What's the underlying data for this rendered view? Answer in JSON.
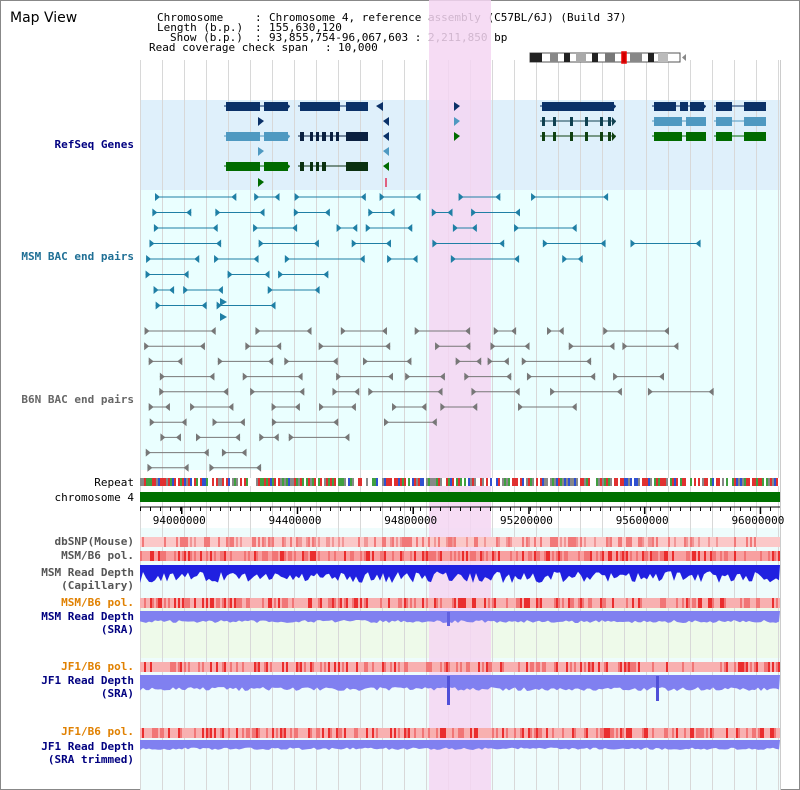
{
  "view_title": "Map View",
  "info": {
    "chromosome_key": "Chromosome",
    "chromosome_val": "Chromosome 4, reference assembly (C57BL/6J) (Build 37)",
    "length_key": "Length (b.p.)",
    "length_val": "155,630,120",
    "show_key": "Show (b.p.)",
    "show_val": "93,855,754-96,067,603 : 2,211,850 bp",
    "coverage_key": "Read coverage check span",
    "coverage_val": "10,000"
  },
  "tracks": {
    "refseq": "RefSeq Genes",
    "msm_bac": "MSM BAC end pairs",
    "b6n_bac": "B6N BAC end pairs",
    "repeat": "Repeat",
    "chromosome": "chromosome 4",
    "dbsnp": "dbSNP(Mouse)",
    "msm_b6_pol_1": "MSM/B6 pol.",
    "msm_depth_cap_1": "MSM Read Depth",
    "msm_depth_cap_2": "(Capillary)",
    "msm_b6_pol_2": "MSM/B6 pol.",
    "msm_depth_sra_1": "MSM Read Depth",
    "msm_depth_sra_2": "(SRA)",
    "jf1_b6_pol_1": "JF1/B6 pol.",
    "jf1_depth_sra_1": "JF1 Read Depth",
    "jf1_depth_sra_2": "(SRA)",
    "jf1_b6_pol_2": "JF1/B6 pol.",
    "jf1_depth_trim_1": "JF1 Read Depth",
    "jf1_depth_trim_2": "(SRA trimmed)"
  },
  "axis": {
    "ticks": [
      "94000000",
      "94400000",
      "94800000",
      "95200000",
      "95600000",
      "96000000"
    ],
    "tick_values": [
      94000000,
      94400000,
      94800000,
      95200000,
      95600000,
      96000000
    ],
    "range": [
      93855754,
      96067603
    ]
  },
  "colors": {
    "refseq_bg": "#dff0fb",
    "bac_bg": "#eaffff",
    "highlight": "#f5d6f2",
    "refseq_dark": "#0b3168",
    "refseq_mid": "#4f99c1",
    "refseq_green": "#006b00",
    "msm_bac": "#1f7fa5",
    "b6n_bac": "#777777",
    "chromosome": "#007000",
    "msm_label": "#000080",
    "pol_label": "#e07000",
    "depth": "#2020e0",
    "depth_light": "#8080f0",
    "pol": "#f08080"
  }
}
